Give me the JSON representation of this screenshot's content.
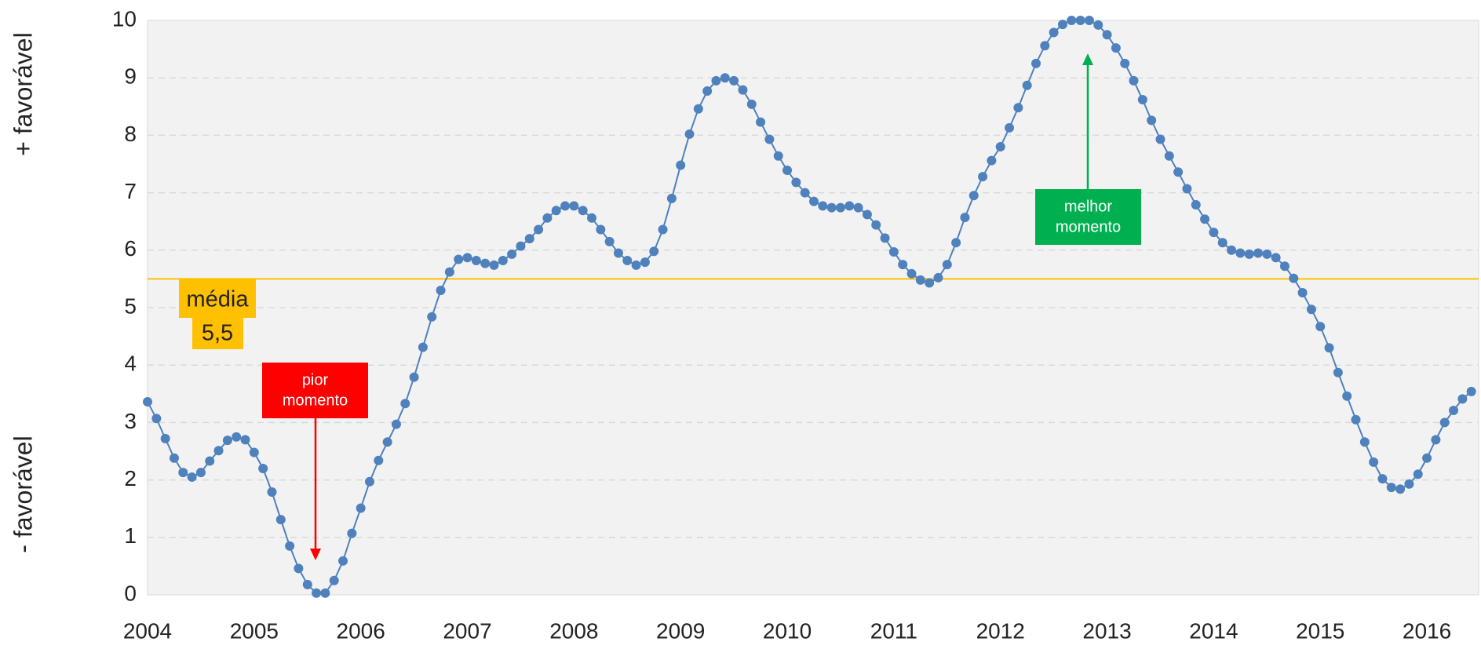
{
  "chart_data": {
    "type": "line",
    "y_label_top": "+ favorável",
    "y_label_bottom": "- favorável",
    "categories": [
      "2004",
      null,
      null,
      null,
      null,
      null,
      null,
      null,
      null,
      null,
      null,
      null,
      "2005",
      null,
      null,
      null,
      null,
      null,
      null,
      null,
      null,
      null,
      null,
      null,
      "2006",
      null,
      null,
      null,
      null,
      null,
      null,
      null,
      null,
      null,
      null,
      null,
      "2007",
      null,
      null,
      null,
      null,
      null,
      null,
      null,
      null,
      null,
      null,
      null,
      "2008",
      null,
      null,
      null,
      null,
      null,
      null,
      null,
      null,
      null,
      null,
      null,
      "2009",
      null,
      null,
      null,
      null,
      null,
      null,
      null,
      null,
      null,
      null,
      null,
      "2010",
      null,
      null,
      null,
      null,
      null,
      null,
      null,
      null,
      null,
      null,
      null,
      "2011",
      null,
      null,
      null,
      null,
      null,
      null,
      null,
      null,
      null,
      null,
      null,
      "2012",
      null,
      null,
      null,
      null,
      null,
      null,
      null,
      null,
      null,
      null,
      null,
      "2013",
      null,
      null,
      null,
      null,
      null,
      null,
      null,
      null,
      null,
      null,
      null,
      "2014",
      null,
      null,
      null,
      null,
      null,
      null,
      null,
      null,
      null,
      null,
      null,
      "2015",
      null,
      null,
      null,
      null,
      null,
      null,
      null,
      null,
      null,
      null,
      null,
      "2016",
      null,
      null,
      null,
      null,
      null
    ],
    "series": [
      {
        "color": "#4f81bd",
        "values": [
          3.36,
          3.07,
          2.72,
          2.38,
          2.13,
          2.05,
          2.13,
          2.33,
          2.51,
          2.69,
          2.75,
          2.7,
          2.48,
          2.2,
          1.79,
          1.31,
          0.85,
          0.46,
          0.18,
          0.03,
          0.03,
          0.25,
          0.59,
          1.07,
          1.51,
          1.97,
          2.34,
          2.66,
          2.97,
          3.33,
          3.79,
          4.31,
          4.84,
          5.3,
          5.62,
          5.84,
          5.87,
          5.82,
          5.77,
          5.74,
          5.82,
          5.93,
          6.07,
          6.2,
          6.36,
          6.56,
          6.69,
          6.77,
          6.77,
          6.69,
          6.56,
          6.36,
          6.15,
          5.95,
          5.82,
          5.74,
          5.79,
          5.98,
          6.36,
          6.9,
          7.48,
          8.02,
          8.46,
          8.77,
          8.95,
          9.0,
          8.95,
          8.79,
          8.54,
          8.23,
          7.93,
          7.64,
          7.39,
          7.18,
          7.0,
          6.85,
          6.77,
          6.74,
          6.74,
          6.77,
          6.74,
          6.62,
          6.44,
          6.21,
          5.97,
          5.75,
          5.59,
          5.48,
          5.43,
          5.52,
          5.75,
          6.13,
          6.57,
          6.95,
          7.28,
          7.56,
          7.8,
          8.13,
          8.48,
          8.87,
          9.25,
          9.56,
          9.79,
          9.93,
          10.0,
          10.0,
          10.0,
          9.92,
          9.75,
          9.52,
          9.25,
          8.95,
          8.62,
          8.26,
          7.93,
          7.64,
          7.36,
          7.07,
          6.79,
          6.54,
          6.31,
          6.13,
          6.0,
          5.95,
          5.93,
          5.95,
          5.93,
          5.87,
          5.72,
          5.51,
          5.26,
          4.97,
          4.67,
          4.3,
          3.87,
          3.46,
          3.05,
          2.66,
          2.31,
          2.02,
          1.87,
          1.84,
          1.93,
          2.1,
          2.38,
          2.7,
          3.0,
          3.21,
          3.41,
          3.54
        ]
      }
    ],
    "ylim": [
      0,
      10
    ],
    "yticks": [
      0,
      1,
      2,
      3,
      4,
      5,
      6,
      7,
      8,
      9,
      10
    ],
    "grid": true,
    "mean": {
      "value": 5.5,
      "label": "5,5",
      "name": "média",
      "color": "#ffc000"
    },
    "annotations": [
      {
        "text": [
          "pior",
          "momento"
        ],
        "color": "#ff0000"
      },
      {
        "text": [
          "melhor",
          "momento"
        ],
        "color": "#00b050"
      }
    ]
  }
}
